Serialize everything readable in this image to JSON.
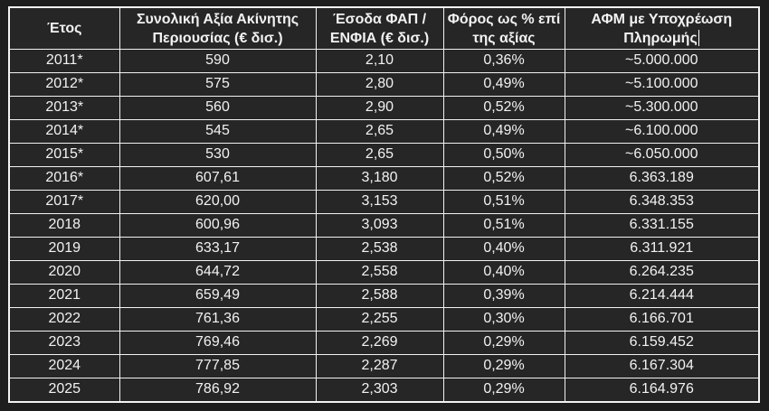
{
  "table": {
    "title_hint": "Greek property tax (ΦΑΠ/ΕΝΦΙΑ) statistics table, dark document theme",
    "column_keys": [
      "year",
      "total_value",
      "revenue",
      "tax_pct",
      "afm"
    ],
    "columns": [
      {
        "key": "year",
        "label": "Έτος"
      },
      {
        "key": "total_value",
        "label": "Συνολική Αξία Ακίνητης Περιουσίας (€ δισ.)"
      },
      {
        "key": "revenue",
        "label": "Έσοδα ΦΑΠ / ΕΝΦΙΑ (€ δισ.)"
      },
      {
        "key": "tax_pct",
        "label": "Φόρος ως % επί της αξίας"
      },
      {
        "key": "afm",
        "label": "ΑΦΜ με Υποχρέωση Πληρωμής"
      }
    ],
    "rows": [
      [
        "2011*",
        "590",
        "2,10",
        "0,36%",
        "~5.000.000"
      ],
      [
        "2012*",
        "575",
        "2,80",
        "0,49%",
        "~5.100.000"
      ],
      [
        "2013*",
        "560",
        "2,90",
        "0,52%",
        "~5.300.000"
      ],
      [
        "2014*",
        "545",
        "2,65",
        "0,49%",
        "~6.100.000"
      ],
      [
        "2015*",
        "530",
        "2,65",
        "0,50%",
        "~6.050.000"
      ],
      [
        "2016*",
        "607,61",
        "3,180",
        "0,52%",
        "6.363.189"
      ],
      [
        "2017*",
        "620,00",
        "3,153",
        "0,51%",
        "6.348.353"
      ],
      [
        "2018",
        "600,96",
        "3,093",
        "0,51%",
        "6.331.155"
      ],
      [
        "2019",
        "633,17",
        "2,538",
        "0,40%",
        "6.311.921"
      ],
      [
        "2020",
        "644,72",
        "2,558",
        "0,40%",
        "6.264.235"
      ],
      [
        "2021",
        "659,49",
        "2,588",
        "0,39%",
        "6.214.444"
      ],
      [
        "2022",
        "761,36",
        "2,255",
        "0,30%",
        "6.166.701"
      ],
      [
        "2023",
        "769,46",
        "2,269",
        "0,29%",
        "6.159.452"
      ],
      [
        "2024",
        "777,85",
        "2,287",
        "0,29%",
        "6.167.304"
      ],
      [
        "2025",
        "786,92",
        "2,303",
        "0,29%",
        "6.164.976"
      ]
    ],
    "colors": {
      "page_background": "#1e1e1e",
      "cell_background": "#262626",
      "border": "#f2f2f2",
      "text": "#f2f2f2"
    },
    "cursor": {
      "present_after": "Πληρωμής"
    }
  }
}
